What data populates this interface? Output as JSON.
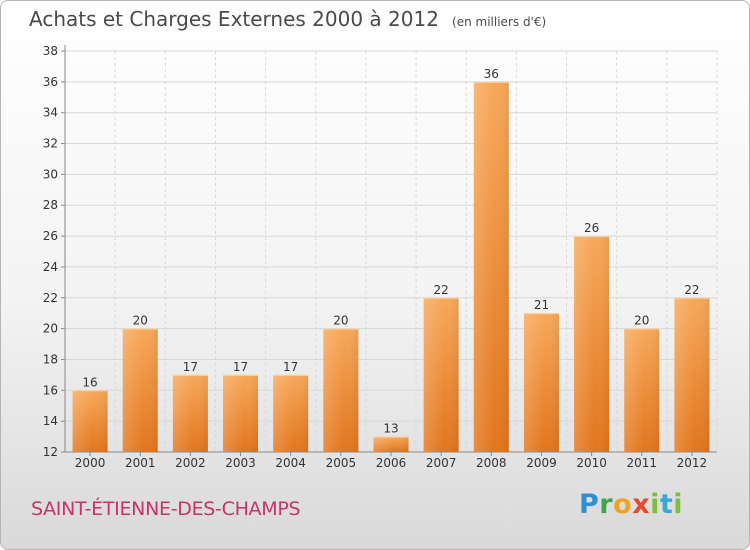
{
  "title": "Achats et Charges Externes 2000 à 2012",
  "unit_note": "(en milliers d'€)",
  "location": "SAINT-ÉTIENNE-DES-CHAMPS",
  "logo": {
    "letters": [
      "P",
      "r",
      "o",
      "x",
      "i",
      "t",
      "i"
    ],
    "colors": [
      "#2f8fd6",
      "#3aa84a",
      "#f2a21f",
      "#e54b2a",
      "#7cbf3b",
      "#35a8d9",
      "#7cbf3b"
    ]
  },
  "colors": {
    "bar_light": "#f7a85a",
    "bar_dark": "#e2751c",
    "grid": "#d8d8d8",
    "axis": "#888888"
  },
  "chart_data": {
    "type": "bar",
    "categories": [
      "2000",
      "2001",
      "2002",
      "2003",
      "2004",
      "2005",
      "2006",
      "2007",
      "2008",
      "2009",
      "2010",
      "2011",
      "2012"
    ],
    "values": [
      16,
      20,
      17,
      17,
      17,
      20,
      13,
      22,
      36,
      21,
      26,
      20,
      22
    ],
    "data_labels": [
      "16",
      "20",
      "17",
      "17",
      "17",
      "20",
      "13",
      "22",
      "36",
      "21",
      "26",
      "20",
      "22"
    ],
    "yticks": [
      "12",
      "14",
      "16",
      "18",
      "20",
      "22",
      "24",
      "26",
      "28",
      "30",
      "32",
      "34",
      "36",
      "38"
    ],
    "ylim": [
      12,
      38
    ],
    "grid": true,
    "legend": "none"
  }
}
